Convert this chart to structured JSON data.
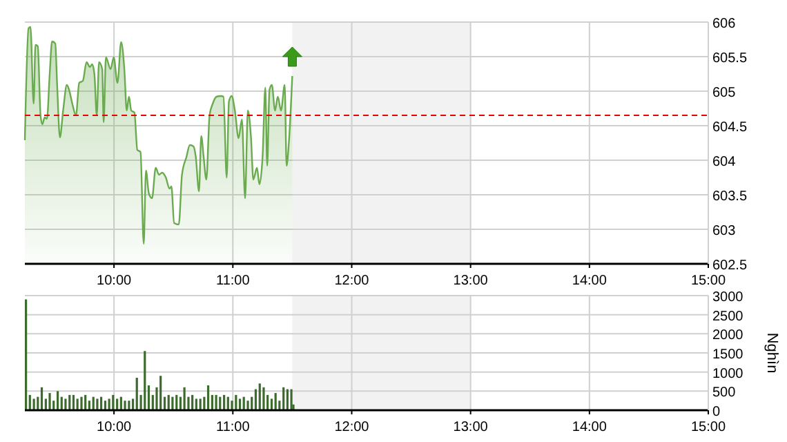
{
  "chart_data": [
    {
      "type": "area",
      "xlim": [
        9.25,
        15
      ],
      "ylim": [
        602.5,
        606
      ],
      "grid": true,
      "xticks": [
        {
          "value": 10,
          "label": "10:00"
        },
        {
          "value": 11,
          "label": "11:00"
        },
        {
          "value": 12,
          "label": "12:00"
        },
        {
          "value": 13,
          "label": "13:00"
        },
        {
          "value": 14,
          "label": "14:00"
        },
        {
          "value": 15,
          "label": "15:00"
        }
      ],
      "yticks": [
        602.5,
        603,
        603.5,
        604,
        604.5,
        605,
        605.5,
        606
      ],
      "ref_lines": [
        {
          "axis": "y",
          "value": 604.65,
          "color": "#ee0000",
          "line_style": "dashed"
        }
      ],
      "bands": [
        {
          "axis": "x",
          "from": 11.5,
          "to": 13,
          "color": "#f2f2f2"
        }
      ],
      "series": [
        {
          "color": "#6aab4f",
          "x": [
            9.25,
            9.281,
            9.297,
            9.324,
            9.339,
            9.359,
            9.382,
            9.397,
            9.417,
            9.436,
            9.459,
            9.479,
            9.506,
            9.521,
            9.545,
            9.572,
            9.603,
            9.622,
            9.649,
            9.68,
            9.707,
            9.738,
            9.769,
            9.797,
            9.816,
            9.835,
            9.855,
            9.874,
            9.901,
            9.913,
            9.932,
            9.971,
            9.998,
            10.029,
            10.06,
            10.087,
            10.107,
            10.126,
            10.145,
            10.172,
            10.196,
            10.223,
            10.25,
            10.269,
            10.293,
            10.32,
            10.351,
            10.378,
            10.405,
            10.436,
            10.467,
            10.483,
            10.506,
            10.545,
            10.572,
            10.61,
            10.638,
            10.669,
            10.688,
            10.715,
            10.734,
            10.754,
            10.777,
            10.804,
            10.831,
            10.862,
            10.901,
            10.921,
            10.948,
            10.967,
            10.99,
            11.017,
            11.048,
            11.076,
            11.103,
            11.126,
            11.153,
            11.172,
            11.203,
            11.223,
            11.25,
            11.273,
            11.289,
            11.308,
            11.328,
            11.355,
            11.378,
            11.405,
            11.436,
            11.452,
            11.471,
            11.5
          ],
          "values": [
            604.29,
            605.91,
            605.93,
            604.82,
            605.67,
            605.65,
            604.65,
            604.52,
            604.62,
            604.6,
            605.25,
            605.72,
            605.69,
            605.12,
            604.33,
            604.72,
            605.09,
            605.02,
            604.82,
            604.65,
            605.12,
            605.15,
            605.42,
            605.35,
            605.39,
            605.25,
            604.65,
            605.42,
            605.32,
            604.55,
            605.49,
            605.32,
            605.49,
            605.12,
            605.71,
            605.32,
            604.72,
            604.92,
            604.72,
            604.69,
            604.15,
            604.12,
            602.79,
            603.85,
            603.52,
            603.45,
            603.89,
            603.79,
            603.82,
            603.75,
            603.59,
            603.62,
            603.09,
            603.07,
            603.79,
            604.05,
            604.22,
            604.2,
            604.05,
            603.55,
            604.35,
            604.05,
            603.72,
            604.65,
            604.82,
            604.92,
            604.93,
            604.92,
            603.75,
            604.85,
            604.93,
            604.72,
            604.32,
            604.59,
            603.45,
            604.72,
            604.32,
            603.72,
            603.89,
            603.65,
            604.05,
            605.05,
            603.92,
            605.02,
            605.09,
            604.72,
            604.92,
            604.72,
            605.09,
            603.92,
            604.25,
            605.22
          ]
        }
      ]
    },
    {
      "type": "bar",
      "xlim": [
        9.25,
        15
      ],
      "ylim": [
        0,
        3000
      ],
      "grid": true,
      "ylabel": "Nghìn",
      "xticks": [
        {
          "value": 10,
          "label": "10:00"
        },
        {
          "value": 11,
          "label": "11:00"
        },
        {
          "value": 12,
          "label": "12:00"
        },
        {
          "value": 13,
          "label": "13:00"
        },
        {
          "value": 14,
          "label": "14:00"
        },
        {
          "value": 15,
          "label": "15:00"
        }
      ],
      "yticks": [
        0,
        500,
        1000,
        1500,
        2000,
        2500,
        3000
      ],
      "bands": [
        {
          "axis": "x",
          "from": 11.5,
          "to": 13,
          "color": "#f2f2f2"
        }
      ],
      "series": [
        {
          "color": "#3d6b2e",
          "x": [
            9.25,
            9.283,
            9.317,
            9.35,
            9.383,
            9.417,
            9.45,
            9.483,
            9.517,
            9.55,
            9.583,
            9.617,
            9.65,
            9.683,
            9.717,
            9.75,
            9.783,
            9.817,
            9.85,
            9.883,
            9.917,
            9.95,
            9.983,
            10.017,
            10.05,
            10.083,
            10.117,
            10.15,
            10.183,
            10.217,
            10.25,
            10.283,
            10.317,
            10.35,
            10.383,
            10.417,
            10.45,
            10.483,
            10.517,
            10.55,
            10.583,
            10.617,
            10.65,
            10.683,
            10.717,
            10.75,
            10.783,
            10.817,
            10.85,
            10.883,
            10.917,
            10.95,
            10.983,
            11.017,
            11.05,
            11.083,
            11.117,
            11.15,
            11.183,
            11.217,
            11.25,
            11.283,
            11.317,
            11.35,
            11.383,
            11.417,
            11.45,
            11.483,
            11.5
          ],
          "values": [
            2900,
            400,
            300,
            350,
            600,
            300,
            450,
            250,
            500,
            350,
            300,
            400,
            400,
            300,
            350,
            400,
            250,
            350,
            300,
            350,
            250,
            300,
            400,
            300,
            350,
            250,
            250,
            300,
            850,
            400,
            1550,
            650,
            400,
            600,
            900,
            350,
            400,
            350,
            400,
            350,
            600,
            350,
            400,
            300,
            300,
            350,
            650,
            400,
            400,
            350,
            400,
            350,
            250,
            400,
            300,
            350,
            250,
            350,
            550,
            700,
            600,
            400,
            300,
            450,
            250,
            600,
            550,
            550,
            150
          ]
        }
      ]
    }
  ]
}
